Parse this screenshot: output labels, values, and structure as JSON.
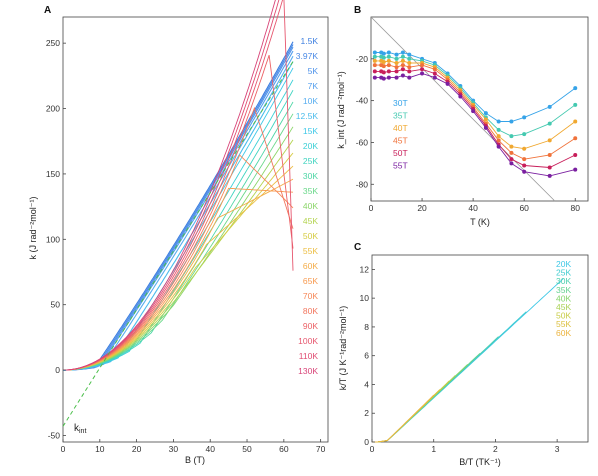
{
  "figure": {
    "panel_labels": [
      "A",
      "B",
      "C"
    ]
  },
  "chart_data": [
    {
      "id": "A",
      "type": "line",
      "xlabel": "B (T)",
      "ylabel": "k (J rad⁻²mol⁻¹)",
      "xlim": [
        0,
        72
      ],
      "ylim": [
        -55,
        270
      ],
      "xticks": [
        0,
        10,
        20,
        30,
        40,
        50,
        60,
        70
      ],
      "yticks": [
        -50,
        0,
        50,
        100,
        150,
        200,
        250
      ],
      "annotation": "k",
      "annotation_sub": "int",
      "legend_placement": "right",
      "series": [
        {
          "name": "1.5K",
          "color": "#3d7fe0",
          "kink": 8.5,
          "end": 251
        },
        {
          "name": "3.97K",
          "color": "#4a8ae6",
          "kink": 9.0,
          "end": 249
        },
        {
          "name": "5K",
          "color": "#4f93ea",
          "kink": 9.5,
          "end": 247
        },
        {
          "name": "7K",
          "color": "#55a0ee",
          "kink": 10,
          "end": 244
        },
        {
          "name": "10K",
          "color": "#58aef0",
          "kink": 11,
          "end": 240
        },
        {
          "name": "12.5K",
          "color": "#4bbcec",
          "kink": 13,
          "end": 236
        },
        {
          "name": "15K",
          "color": "#3fc8e8",
          "kink": 15,
          "end": 231
        },
        {
          "name": "20K",
          "color": "#3cd0d6",
          "kink": 18,
          "end": 222
        },
        {
          "name": "25K",
          "color": "#40d4c0",
          "kink": 21,
          "end": 214
        },
        {
          "name": "30K",
          "color": "#4ed6a6",
          "kink": 24,
          "end": 205
        },
        {
          "name": "35K",
          "color": "#6ad88a",
          "kink": 27,
          "end": 196
        },
        {
          "name": "40K",
          "color": "#8cd66a",
          "kink": 30,
          "end": 186
        },
        {
          "name": "45K",
          "color": "#b4d450",
          "kink": 33,
          "end": 176
        },
        {
          "name": "50K",
          "color": "#d6cc44",
          "kink": 36,
          "end": 166
        },
        {
          "name": "55K",
          "color": "#ecbe44",
          "kink": 39,
          "end": 156
        },
        {
          "name": "60K",
          "color": "#f4ac48",
          "kink": 42,
          "end": 146
        },
        {
          "name": "65K",
          "color": "#f79a50",
          "kink": 45,
          "end": 136
        },
        {
          "name": "70K",
          "color": "#f68858",
          "kink": 48,
          "end": 124
        },
        {
          "name": "80K",
          "color": "#f2765e",
          "kink": 52,
          "end": 108
        },
        {
          "name": "90K",
          "color": "#ec6266",
          "kink": 56,
          "end": 93
        },
        {
          "name": "100K",
          "color": "#e6566e",
          "kink": 60,
          "end": 76
        },
        {
          "name": "110K",
          "color": "#e04c72",
          "kink": 64,
          "end": 64
        },
        {
          "name": "130K",
          "color": "#d84478",
          "kink": 68,
          "end": 50
        }
      ],
      "dashed_fit": {
        "color": "#4cbf4c",
        "x": [
          0,
          62.5
        ],
        "y": [
          -43,
          236
        ]
      }
    },
    {
      "id": "B",
      "type": "scatter",
      "xlabel": "T (K)",
      "ylabel": "k_int (J rad⁻²mol⁻¹)",
      "xlim": [
        0,
        85
      ],
      "ylim": [
        -88,
        0
      ],
      "xticks": [
        0,
        20,
        40,
        60,
        80
      ],
      "yticks": [
        -80,
        -60,
        -40,
        -20
      ],
      "legend_placement": "left",
      "gray_line": {
        "color": "#999999",
        "x": [
          0,
          72
        ],
        "y": [
          0,
          -88
        ]
      },
      "series": [
        {
          "name": "30T",
          "color": "#35a3e8",
          "x": [
            1.5,
            4,
            5,
            7,
            10,
            12.5,
            15,
            20,
            25,
            30,
            35,
            40,
            45,
            50,
            55,
            60,
            70,
            80
          ],
          "y": [
            -17,
            -17,
            -17.5,
            -17,
            -18,
            -17,
            -18,
            -20,
            -22,
            -27,
            -33,
            -40,
            -46,
            -50,
            -50,
            -48,
            -43,
            -34
          ]
        },
        {
          "name": "35T",
          "color": "#44c9b0",
          "x": [
            1.5,
            4,
            5,
            7,
            10,
            12.5,
            15,
            20,
            25,
            30,
            35,
            40,
            45,
            50,
            55,
            60,
            70,
            80
          ],
          "y": [
            -19,
            -19,
            -19.5,
            -19,
            -20,
            -19,
            -20,
            -21,
            -23,
            -28,
            -34,
            -41,
            -48,
            -54,
            -57,
            -56,
            -51,
            -42
          ]
        },
        {
          "name": "40T",
          "color": "#f0a830",
          "x": [
            1.5,
            4,
            5,
            7,
            10,
            12.5,
            15,
            20,
            25,
            30,
            35,
            40,
            45,
            50,
            55,
            60,
            70,
            80
          ],
          "y": [
            -21,
            -21,
            -21.5,
            -21,
            -22,
            -21,
            -22,
            -22,
            -24,
            -29,
            -35,
            -42,
            -49,
            -57,
            -62,
            -63,
            -59,
            -50
          ]
        },
        {
          "name": "45T",
          "color": "#f0723a",
          "x": [
            1.5,
            4,
            5,
            7,
            10,
            12.5,
            15,
            20,
            25,
            30,
            35,
            40,
            45,
            50,
            55,
            60,
            70,
            80
          ],
          "y": [
            -23,
            -23,
            -23.5,
            -23,
            -24,
            -23,
            -24,
            -23,
            -25,
            -30,
            -36,
            -43,
            -51,
            -59,
            -65,
            -68,
            -66,
            -58
          ]
        },
        {
          "name": "50T",
          "color": "#c81e5a",
          "x": [
            1.5,
            4,
            5,
            7,
            10,
            12.5,
            15,
            20,
            25,
            30,
            35,
            40,
            45,
            50,
            55,
            60,
            70,
            80
          ],
          "y": [
            -26,
            -26,
            -26.5,
            -26,
            -26,
            -25,
            -26,
            -25,
            -27,
            -31,
            -37,
            -44,
            -52,
            -61,
            -68,
            -71,
            -72,
            -66
          ]
        },
        {
          "name": "55T",
          "color": "#7a1fa0",
          "x": [
            1.5,
            4,
            5,
            7,
            10,
            12.5,
            15,
            20,
            25,
            30,
            35,
            40,
            45,
            50,
            55,
            60,
            70,
            80
          ],
          "y": [
            -29,
            -29,
            -29.5,
            -29,
            -29,
            -28,
            -29,
            -27,
            -29,
            -32,
            -38,
            -45,
            -53,
            -62,
            -70,
            -74,
            -76,
            -73
          ]
        }
      ]
    },
    {
      "id": "C",
      "type": "line",
      "xlabel": "B/T (TK⁻¹)",
      "ylabel": "k/T (J K⁻¹rad⁻²mol⁻¹)",
      "xlim": [
        0,
        3.5
      ],
      "ylim": [
        0,
        13
      ],
      "xticks": [
        0,
        1,
        2,
        3
      ],
      "yticks": [
        0,
        2,
        4,
        6,
        8,
        10,
        12
      ],
      "legend_placement": "top-right",
      "series": [
        {
          "name": "20K",
          "color": "#3ec8e6",
          "xmax": 3.1
        },
        {
          "name": "25K",
          "color": "#40ccd0",
          "xmax": 2.5
        },
        {
          "name": "30K",
          "color": "#4ed0b0",
          "xmax": 2.08
        },
        {
          "name": "35K",
          "color": "#64d290",
          "xmax": 1.78
        },
        {
          "name": "40K",
          "color": "#86d46c",
          "xmax": 1.56
        },
        {
          "name": "45K",
          "color": "#aad256",
          "xmax": 1.39
        },
        {
          "name": "50K",
          "color": "#c8cc44",
          "xmax": 1.25
        },
        {
          "name": "55K",
          "color": "#dcc040",
          "xmax": 1.13
        },
        {
          "name": "60K",
          "color": "#ecb440",
          "xmax": 1.04
        }
      ]
    }
  ]
}
